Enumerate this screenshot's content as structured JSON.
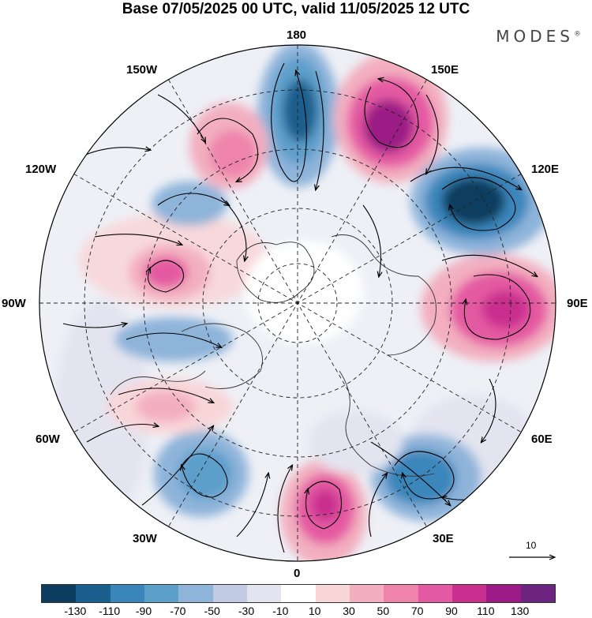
{
  "title": "Base 07/05/2025 00 UTC, valid 11/05/2025 12 UTC",
  "logo": "MODES",
  "logo_mark": "®",
  "longitude_labels": {
    "lon_180": "180",
    "lon_150w": "150W",
    "lon_150e": "150E",
    "lon_120w": "120W",
    "lon_120e": "120E",
    "lon_90w": "90W",
    "lon_90e": "90E",
    "lon_60w": "60W",
    "lon_60e": "60E",
    "lon_30w": "30W",
    "lon_30e": "30E",
    "lon_0": "0"
  },
  "reference_vector": "10",
  "colorbar": {
    "colors": [
      "#0b3d5e",
      "#1a5f8e",
      "#3a86bb",
      "#5d9fcb",
      "#8eb4da",
      "#c1c9e3",
      "#e3e4f0",
      "#ffffff",
      "#f8d6d8",
      "#f3afc0",
      "#ee84ac",
      "#e45aa2",
      "#c92f8f",
      "#9b1a85",
      "#6b2580"
    ],
    "labels": [
      "-130",
      "-110",
      "-90",
      "-70",
      "-50",
      "-30",
      "-10",
      "10",
      "30",
      "50",
      "70",
      "90",
      "110",
      "130"
    ]
  },
  "anomaly_centers": [
    {
      "name": "north-of-180",
      "sign": "negative",
      "level": -110
    },
    {
      "name": "150E",
      "sign": "positive",
      "level": 110
    },
    {
      "name": "120E",
      "sign": "negative",
      "level": -130
    },
    {
      "name": "90E",
      "sign": "positive",
      "level": 90
    },
    {
      "name": "30E",
      "sign": "negative",
      "level": -90
    },
    {
      "name": "0",
      "sign": "positive",
      "level": 110
    },
    {
      "name": "30W",
      "sign": "negative",
      "level": -70
    },
    {
      "name": "60W",
      "sign": "positive",
      "level": 50
    },
    {
      "name": "90W-south",
      "sign": "negative",
      "level": -50
    },
    {
      "name": "120W",
      "sign": "positive",
      "level": 90
    },
    {
      "name": "120W-north",
      "sign": "negative",
      "level": -50
    },
    {
      "name": "150W",
      "sign": "positive",
      "level": 50
    }
  ]
}
